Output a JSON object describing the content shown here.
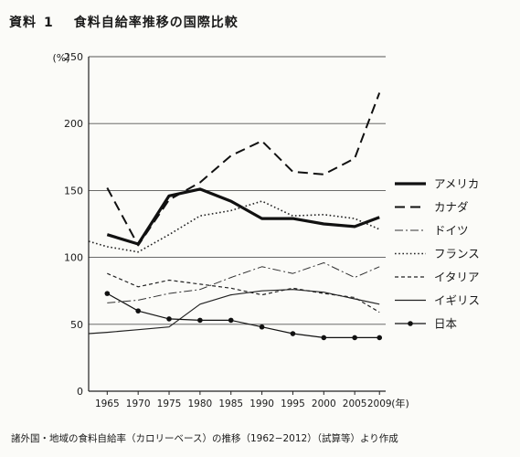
{
  "header": {
    "label": "資料",
    "number": "1",
    "title": "食料自給率推移の国際比較"
  },
  "footer": {
    "note": "諸外国・地域の食料自給率（カロリーベース）の推移（1962−2012）（試算等）より作成"
  },
  "chart_data": {
    "type": "line",
    "y_unit": "(%)",
    "x_unit": "(年)",
    "ylim": [
      0,
      250
    ],
    "y_ticks": [
      0,
      50,
      100,
      150,
      200,
      250
    ],
    "x_ticks": [
      1965,
      1970,
      1975,
      1980,
      1985,
      1990,
      1995,
      2000,
      2005,
      2009
    ],
    "xlim": [
      1962,
      2010
    ],
    "grid": "horizontal",
    "legend_position": "right",
    "series": [
      {
        "name": "アメリカ",
        "style": "thick-solid",
        "color": "#111111",
        "points": [
          [
            1965,
            117
          ],
          [
            1970,
            110
          ],
          [
            1975,
            146
          ],
          [
            1980,
            151
          ],
          [
            1985,
            142
          ],
          [
            1990,
            129
          ],
          [
            1995,
            129
          ],
          [
            2000,
            125
          ],
          [
            2005,
            123
          ],
          [
            2009,
            130
          ]
        ]
      },
      {
        "name": "カナダ",
        "style": "long-dash",
        "color": "#111111",
        "points": [
          [
            1965,
            152
          ],
          [
            1970,
            109
          ],
          [
            1975,
            143
          ],
          [
            1980,
            156
          ],
          [
            1985,
            176
          ],
          [
            1990,
            187
          ],
          [
            1995,
            164
          ],
          [
            2000,
            162
          ],
          [
            2005,
            174
          ],
          [
            2009,
            223
          ]
        ]
      },
      {
        "name": "ドイツ",
        "style": "dash-dot",
        "color": "#333333",
        "points": [
          [
            1965,
            66
          ],
          [
            1970,
            68
          ],
          [
            1975,
            73
          ],
          [
            1980,
            76
          ],
          [
            1985,
            85
          ],
          [
            1990,
            93
          ],
          [
            1995,
            88
          ],
          [
            2000,
            96
          ],
          [
            2005,
            85
          ],
          [
            2009,
            93
          ]
        ]
      },
      {
        "name": "フランス",
        "style": "dotted",
        "color": "#222222",
        "points": [
          [
            1962,
            112
          ],
          [
            1965,
            108
          ],
          [
            1970,
            104
          ],
          [
            1975,
            117
          ],
          [
            1980,
            131
          ],
          [
            1985,
            135
          ],
          [
            1990,
            142
          ],
          [
            1995,
            131
          ],
          [
            2000,
            132
          ],
          [
            2005,
            129
          ],
          [
            2009,
            121
          ]
        ]
      },
      {
        "name": "イタリア",
        "style": "short-dash",
        "color": "#222222",
        "points": [
          [
            1965,
            88
          ],
          [
            1970,
            78
          ],
          [
            1975,
            83
          ],
          [
            1980,
            80
          ],
          [
            1985,
            77
          ],
          [
            1990,
            72
          ],
          [
            1995,
            77
          ],
          [
            2000,
            73
          ],
          [
            2005,
            70
          ],
          [
            2009,
            59
          ]
        ]
      },
      {
        "name": "イギリス",
        "style": "thin-solid",
        "color": "#222222",
        "points": [
          [
            1962,
            43
          ],
          [
            1965,
            44
          ],
          [
            1970,
            46
          ],
          [
            1975,
            48
          ],
          [
            1980,
            65
          ],
          [
            1985,
            72
          ],
          [
            1990,
            75
          ],
          [
            1995,
            76
          ],
          [
            2000,
            74
          ],
          [
            2005,
            69
          ],
          [
            2009,
            65
          ]
        ]
      },
      {
        "name": "日本",
        "style": "solid-markers",
        "color": "#111111",
        "points": [
          [
            1965,
            73
          ],
          [
            1970,
            60
          ],
          [
            1975,
            54
          ],
          [
            1980,
            53
          ],
          [
            1985,
            53
          ],
          [
            1990,
            48
          ],
          [
            1995,
            43
          ],
          [
            2000,
            40
          ],
          [
            2005,
            40
          ],
          [
            2009,
            40
          ]
        ]
      }
    ]
  }
}
